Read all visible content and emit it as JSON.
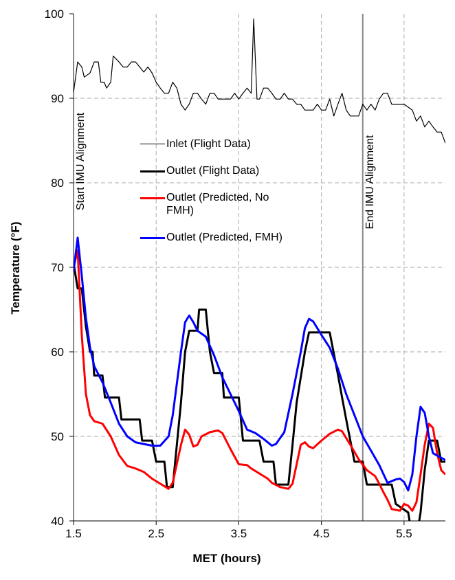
{
  "chart_data": {
    "type": "line",
    "xlabel": "MET (hours)",
    "ylabel": "Temperature (°F)",
    "xlim": [
      1.5,
      6.0
    ],
    "ylim": [
      40,
      100
    ],
    "xticks": [
      1.5,
      2.5,
      3.5,
      4.5,
      5.5
    ],
    "yticks": [
      40,
      50,
      60,
      70,
      80,
      90,
      100
    ],
    "grid": true,
    "annotations": [
      {
        "text": "Start IMU Alignment",
        "x": 1.5
      },
      {
        "text": "End IMU Alignment",
        "x": 5.0
      }
    ],
    "series": [
      {
        "name": "Inlet (Flight Data)",
        "color": "#000000",
        "width": 1.2,
        "x": [
          1.5,
          1.55,
          1.6,
          1.63,
          1.7,
          1.75,
          1.8,
          1.83,
          1.87,
          1.9,
          1.95,
          1.98,
          2.05,
          2.1,
          2.15,
          2.2,
          2.25,
          2.3,
          2.35,
          2.4,
          2.45,
          2.5,
          2.55,
          2.6,
          2.65,
          2.7,
          2.75,
          2.8,
          2.85,
          2.9,
          2.95,
          3.0,
          3.05,
          3.1,
          3.15,
          3.2,
          3.25,
          3.3,
          3.4,
          3.45,
          3.5,
          3.55,
          3.6,
          3.65,
          3.68,
          3.72,
          3.75,
          3.8,
          3.85,
          3.9,
          3.95,
          4.0,
          4.05,
          4.1,
          4.15,
          4.2,
          4.25,
          4.3,
          4.4,
          4.45,
          4.5,
          4.55,
          4.6,
          4.65,
          4.7,
          4.75,
          4.8,
          4.85,
          4.95,
          5.0,
          5.05,
          5.1,
          5.15,
          5.2,
          5.25,
          5.3,
          5.35,
          5.5,
          5.6,
          5.65,
          5.7,
          5.75,
          5.8,
          5.85,
          5.9,
          5.95,
          6.0
        ],
        "values": [
          90.7,
          94.3,
          93.7,
          92.5,
          93.0,
          94.3,
          94.3,
          91.9,
          91.9,
          91.2,
          91.9,
          95.0,
          94.3,
          93.7,
          93.7,
          94.3,
          94.3,
          93.7,
          93.1,
          93.7,
          93.0,
          91.9,
          91.2,
          90.6,
          90.6,
          91.9,
          91.2,
          89.3,
          88.6,
          89.3,
          90.6,
          90.6,
          89.9,
          89.3,
          90.6,
          90.6,
          89.9,
          89.9,
          89.9,
          90.6,
          89.9,
          90.6,
          91.2,
          90.6,
          99.4,
          89.9,
          89.9,
          91.2,
          91.2,
          90.6,
          89.9,
          89.9,
          90.6,
          89.9,
          89.9,
          89.3,
          89.3,
          88.6,
          88.6,
          89.3,
          88.6,
          88.6,
          89.9,
          87.9,
          89.3,
          90.6,
          88.6,
          87.9,
          87.9,
          89.3,
          88.6,
          89.3,
          88.6,
          89.9,
          90.6,
          90.6,
          89.3,
          89.3,
          88.6,
          87.3,
          87.9,
          86.6,
          87.3,
          86.6,
          86.0,
          86.0,
          84.7
        ]
      },
      {
        "name": "Outlet (Flight Data)",
        "color": "#000000",
        "width": 3,
        "x": [
          1.5,
          1.55,
          1.6,
          1.65,
          1.7,
          1.73,
          1.75,
          1.85,
          1.88,
          2.05,
          2.08,
          2.3,
          2.33,
          2.45,
          2.5,
          2.6,
          2.63,
          2.7,
          2.75,
          2.8,
          2.85,
          2.9,
          3.0,
          3.02,
          3.1,
          3.15,
          3.2,
          3.3,
          3.32,
          3.5,
          3.55,
          3.75,
          3.8,
          3.92,
          3.95,
          4.1,
          4.15,
          4.2,
          4.3,
          4.35,
          4.6,
          4.65,
          4.7,
          4.75,
          4.8,
          4.85,
          4.9,
          5.0,
          5.05,
          5.35,
          5.4,
          5.55,
          5.6,
          5.65,
          5.7,
          5.75,
          5.8,
          5.9,
          5.95,
          6.0
        ],
        "values": [
          70.5,
          67.5,
          67.5,
          63,
          60,
          60,
          57.2,
          57.2,
          54.6,
          54.6,
          52,
          52,
          49.5,
          49.5,
          47,
          47,
          44,
          44,
          49,
          54,
          60,
          62.5,
          62.5,
          65,
          65,
          60,
          57.5,
          57.5,
          54.6,
          54.6,
          49.5,
          49.5,
          47,
          47,
          44.3,
          44.3,
          49,
          54,
          60,
          62.3,
          62.3,
          59.8,
          57.3,
          54.6,
          52,
          49.5,
          47,
          47,
          44.3,
          44.3,
          42,
          41,
          38,
          38,
          41,
          46,
          49.5,
          49.5,
          47,
          47
        ]
      },
      {
        "name": "Outlet (Predicted, No FMH)",
        "color": "#ff0000",
        "width": 3,
        "x": [
          1.5,
          1.55,
          1.6,
          1.65,
          1.7,
          1.75,
          1.85,
          1.95,
          2.05,
          2.15,
          2.25,
          2.35,
          2.45,
          2.55,
          2.65,
          2.7,
          2.8,
          2.85,
          2.9,
          2.95,
          3.0,
          3.05,
          3.15,
          3.25,
          3.3,
          3.4,
          3.5,
          3.6,
          3.65,
          3.75,
          3.85,
          3.9,
          4.0,
          4.1,
          4.15,
          4.25,
          4.3,
          4.35,
          4.4,
          4.5,
          4.6,
          4.7,
          4.75,
          4.85,
          4.95,
          5.05,
          5.15,
          5.2,
          5.25,
          5.3,
          5.35,
          5.45,
          5.5,
          5.55,
          5.6,
          5.65,
          5.7,
          5.75,
          5.8,
          5.85,
          5.9,
          5.95,
          6.0
        ],
        "values": [
          70,
          72,
          62,
          55,
          52.5,
          51.8,
          51.5,
          50,
          47.8,
          46.5,
          46.2,
          45.8,
          45,
          44.4,
          43.8,
          44.5,
          49,
          50.8,
          50.2,
          48.8,
          49,
          50,
          50.5,
          50.7,
          50.4,
          48.5,
          46.7,
          46.6,
          46.2,
          45.6,
          45,
          44.5,
          44,
          43.8,
          44.4,
          49,
          49.3,
          48.8,
          48.6,
          49.5,
          50.3,
          50.8,
          50.6,
          49,
          47.3,
          46,
          45.3,
          44.4,
          43.4,
          42.5,
          41.4,
          41.2,
          42,
          41.8,
          41.2,
          42.2,
          45.5,
          49,
          51.5,
          51,
          48,
          46,
          45.5
        ]
      },
      {
        "name": "Outlet (Predicted, FMH)",
        "color": "#0000ff",
        "width": 3,
        "x": [
          1.5,
          1.55,
          1.6,
          1.65,
          1.7,
          1.75,
          1.85,
          1.95,
          2.05,
          2.15,
          2.25,
          2.35,
          2.45,
          2.55,
          2.65,
          2.7,
          2.8,
          2.85,
          2.9,
          2.95,
          3.0,
          3.1,
          3.2,
          3.3,
          3.4,
          3.5,
          3.6,
          3.7,
          3.8,
          3.9,
          3.95,
          4.05,
          4.15,
          4.25,
          4.3,
          4.35,
          4.4,
          4.5,
          4.6,
          4.7,
          4.8,
          4.9,
          5.0,
          5.1,
          5.2,
          5.3,
          5.4,
          5.45,
          5.5,
          5.55,
          5.6,
          5.65,
          5.7,
          5.75,
          5.8,
          5.85,
          6.0
        ],
        "values": [
          69.5,
          73.5,
          69,
          64,
          60.5,
          58.3,
          56.4,
          54,
          51.5,
          50,
          49.3,
          49.1,
          48.9,
          48.9,
          50,
          52.5,
          60,
          63.5,
          64.3,
          63.5,
          62.5,
          61.8,
          59.6,
          57,
          55,
          53,
          50.8,
          50.4,
          49.7,
          48.9,
          49.1,
          50.5,
          55,
          60,
          62.8,
          63.9,
          63.6,
          62,
          60.5,
          58,
          55,
          52.5,
          50,
          48.3,
          46.6,
          44.5,
          44.9,
          45,
          44.6,
          43.6,
          45.5,
          50,
          53.5,
          52.8,
          50,
          48,
          47.2
        ]
      }
    ]
  }
}
